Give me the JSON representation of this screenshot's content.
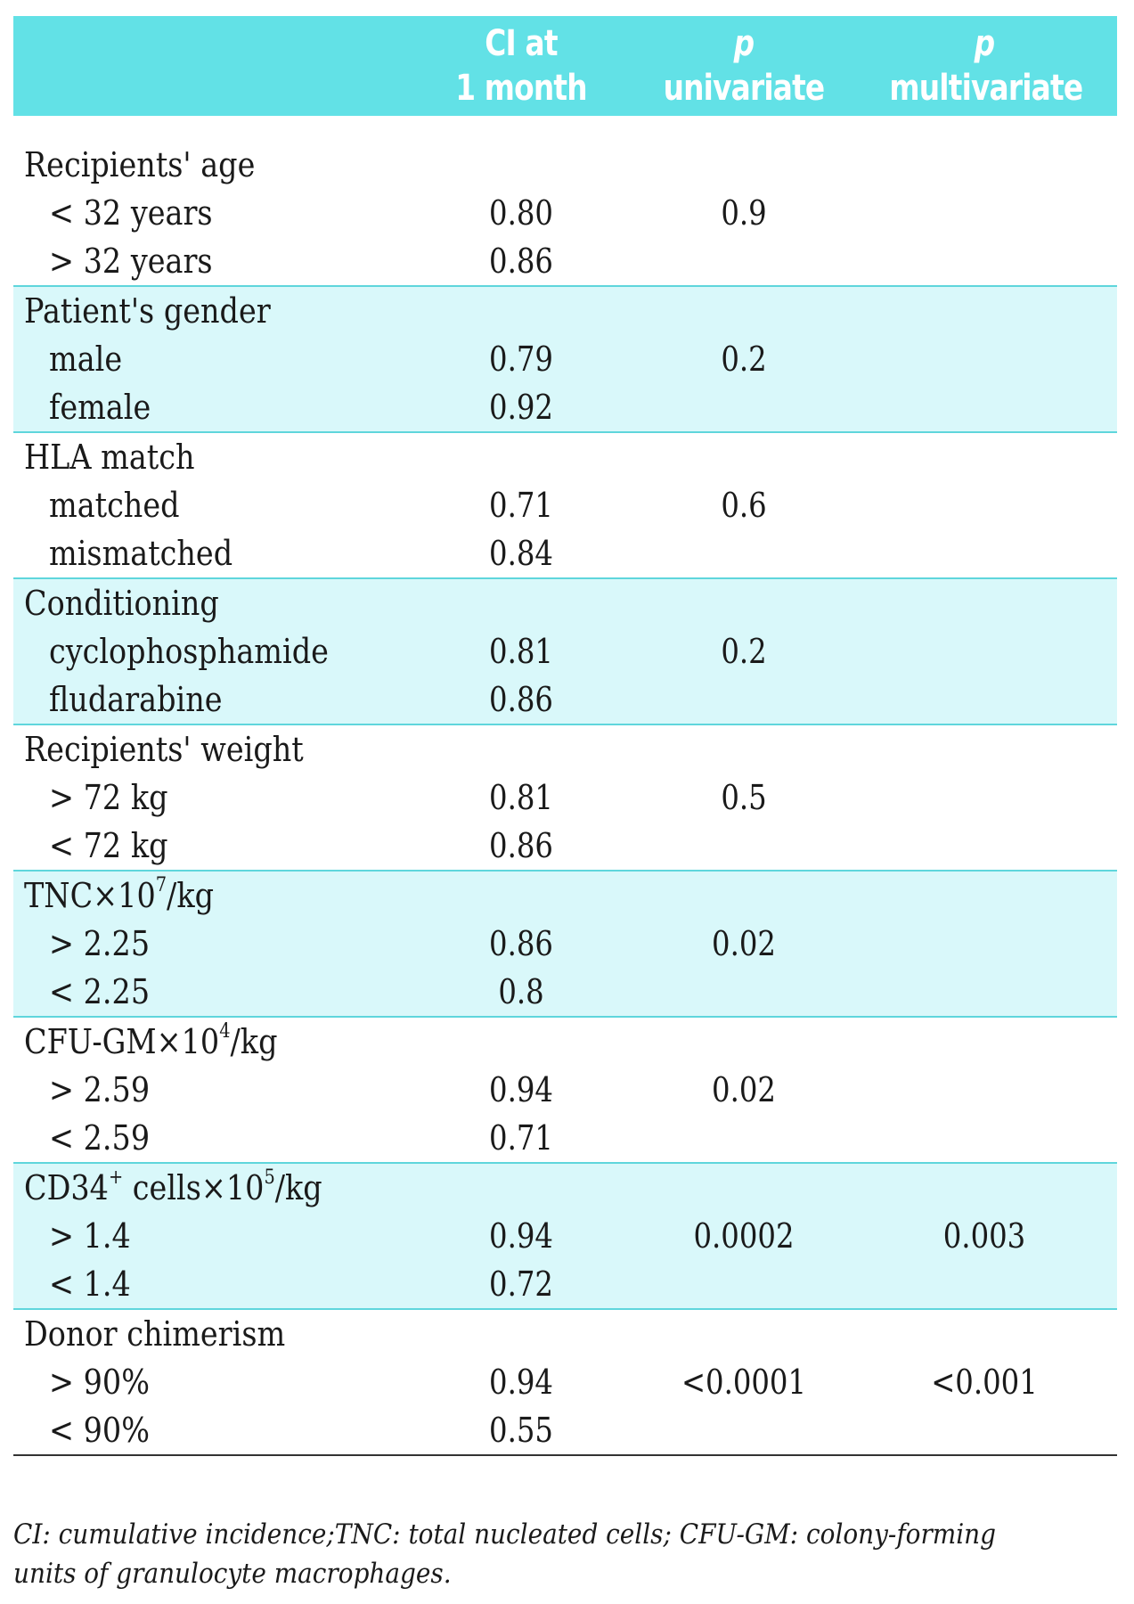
{
  "header": {
    "ci_line1": "CI at",
    "ci_line2": "1 month",
    "pu_line1": "p",
    "pu_line2": "univariate",
    "pm_line1": "p",
    "pm_line2": "multivariate"
  },
  "groups": [
    {
      "title": "Recipients' age",
      "rows": [
        {
          "label": "< 32 years",
          "ci": "0.80",
          "pu": "0.9",
          "pm": ""
        },
        {
          "label": "> 32 years",
          "ci": "0.86",
          "pu": "",
          "pm": ""
        }
      ]
    },
    {
      "title": "Patient's gender",
      "rows": [
        {
          "label": "male",
          "ci": "0.79",
          "pu": "0.2",
          "pm": ""
        },
        {
          "label": "female",
          "ci": "0.92",
          "pu": "",
          "pm": ""
        }
      ]
    },
    {
      "title": "HLA match",
      "rows": [
        {
          "label": "matched",
          "ci": "0.71",
          "pu": "0.6",
          "pm": ""
        },
        {
          "label": "mismatched",
          "ci": "0.84",
          "pu": "",
          "pm": ""
        }
      ]
    },
    {
      "title": "Conditioning",
      "rows": [
        {
          "label": "cyclophosphamide",
          "ci": "0.81",
          "pu": "0.2",
          "pm": ""
        },
        {
          "label": "fludarabine",
          "ci": "0.86",
          "pu": "",
          "pm": ""
        }
      ]
    },
    {
      "title": "Recipients' weight",
      "rows": [
        {
          "label": "> 72 kg",
          "ci": "0.81",
          "pu": "0.5",
          "pm": ""
        },
        {
          "label": "< 72 kg",
          "ci": "0.86",
          "pu": "",
          "pm": ""
        }
      ]
    },
    {
      "title_prefix": "TNC×10",
      "title_sup": "7",
      "title_suffix": "/kg",
      "rows": [
        {
          "label": "> 2.25",
          "ci": "0.86",
          "pu": "0.02",
          "pm": ""
        },
        {
          "label": "< 2.25",
          "ci": "0.8",
          "pu": "",
          "pm": ""
        }
      ]
    },
    {
      "title_prefix": "CFU-GM×10",
      "title_sup": "4",
      "title_suffix": "/kg",
      "rows": [
        {
          "label": "> 2.59",
          "ci": "0.94",
          "pu": "0.02",
          "pm": ""
        },
        {
          "label": "< 2.59",
          "ci": "0.71",
          "pu": "",
          "pm": ""
        }
      ]
    },
    {
      "title_prefix": "CD34",
      "title_sup": "+",
      "title_suffix": " cells×10",
      "title_sup2": "5",
      "title_suffix2": "/kg",
      "rows": [
        {
          "label": "> 1.4",
          "ci": "0.94",
          "pu": "0.0002",
          "pm": "0.003"
        },
        {
          "label": "< 1.4",
          "ci": "0.72",
          "pu": "",
          "pm": ""
        }
      ]
    },
    {
      "title": "Donor chimerism",
      "rows": [
        {
          "label": "> 90%",
          "ci": "0.94",
          "pu": "<0.0001",
          "pm": "<0.001"
        },
        {
          "label": "< 90%",
          "ci": "0.55",
          "pu": "",
          "pm": ""
        }
      ]
    }
  ],
  "footnote": "CI: cumulative incidence;TNC: total nucleated cells; CFU-GM: colony-forming units of granulocyte macrophages."
}
